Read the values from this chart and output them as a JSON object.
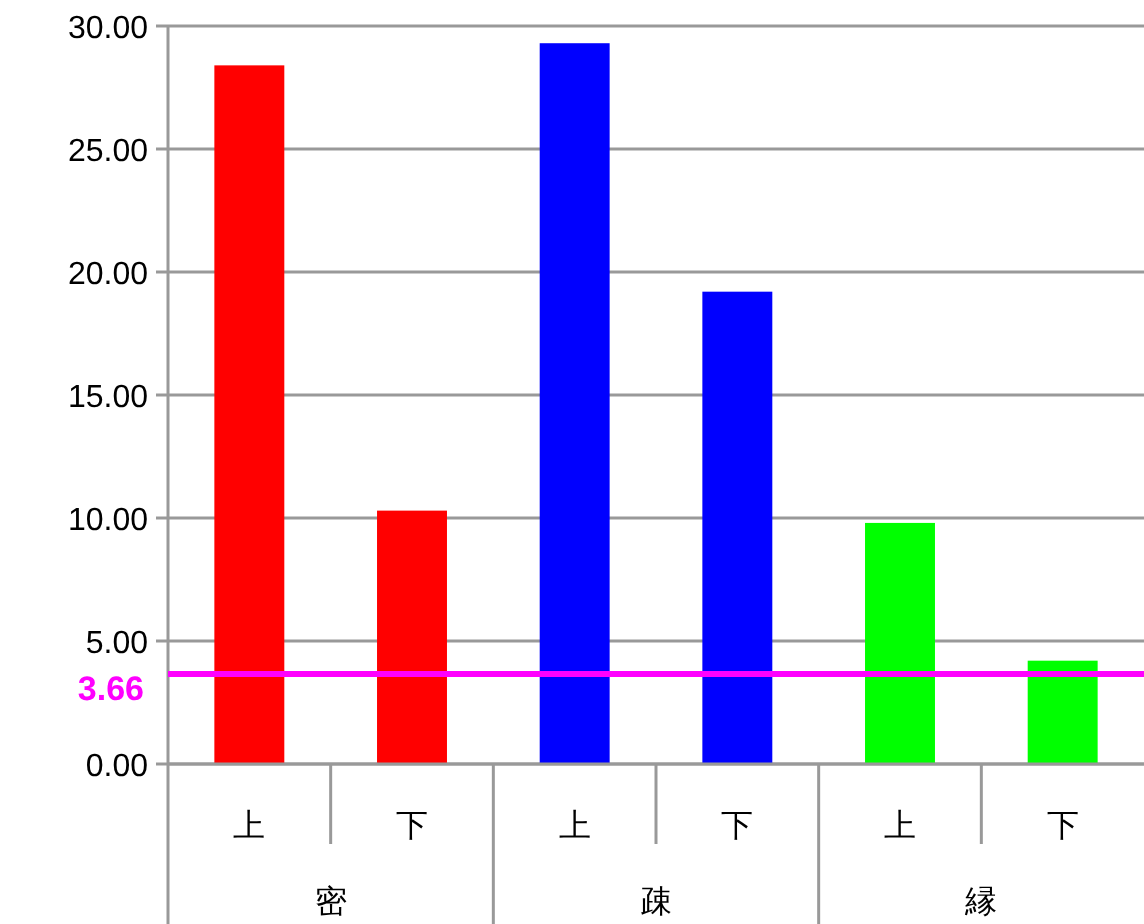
{
  "chart_data": {
    "type": "bar",
    "categories": [
      "上",
      "下",
      "上",
      "下",
      "上",
      "下"
    ],
    "values": [
      28.4,
      10.3,
      29.3,
      19.2,
      9.8,
      4.2
    ],
    "colors": [
      "#ff0000",
      "#ff0000",
      "#0000ff",
      "#0000ff",
      "#00ff00",
      "#00ff00"
    ],
    "ylim": [
      0,
      30
    ],
    "yticks": [
      {
        "value": 0,
        "label": "0.00"
      },
      {
        "value": 5,
        "label": "5.00"
      },
      {
        "value": 10,
        "label": "10.00"
      },
      {
        "value": 15,
        "label": "15.00"
      },
      {
        "value": 20,
        "label": "20.00"
      },
      {
        "value": 25,
        "label": "25.00"
      },
      {
        "value": 30,
        "label": "30.00"
      }
    ],
    "grid": "y",
    "ref_lines": [
      {
        "axis": "y",
        "value": 3.66,
        "label": "3.66",
        "color": "#ff00ff"
      }
    ],
    "annotations": [
      "密",
      "疎",
      "縁"
    ]
  }
}
